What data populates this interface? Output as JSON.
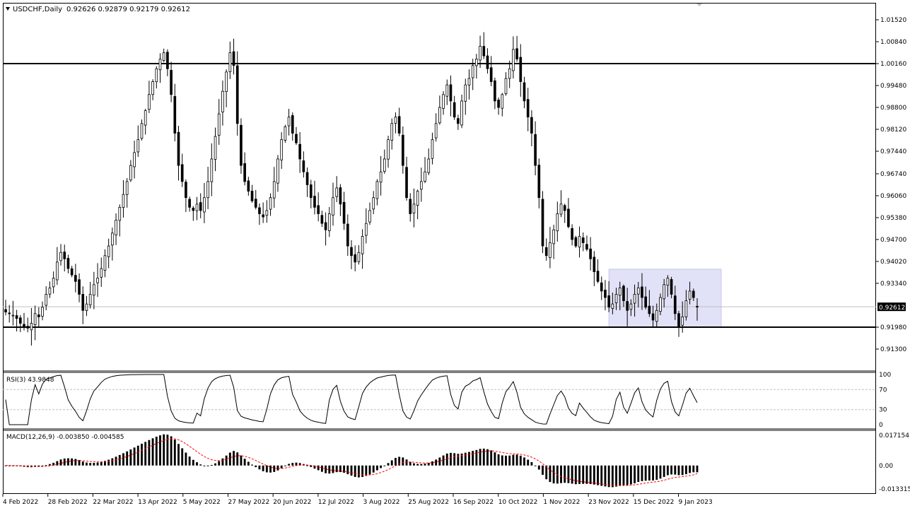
{
  "header": {
    "title": "USDCHF,Daily",
    "ohlc": "0.92626 0.92879 0.92179 0.92612"
  },
  "price_panel": {
    "current_price_label": "0.92612",
    "y_ticks": [
      "1.01520",
      "1.00840",
      "1.00160",
      "0.99480",
      "0.98800",
      "0.98120",
      "0.97440",
      "0.96740",
      "0.96060",
      "0.95380",
      "0.94700",
      "0.94020",
      "0.93340",
      "0.92612",
      "0.91980",
      "0.91300"
    ]
  },
  "rsi_panel": {
    "label": "RSI(3) 43.9848",
    "y_ticks": [
      "100",
      "70",
      "30",
      "0"
    ]
  },
  "macd_panel": {
    "label": "MACD(12,26,9) -0.003850 -0.004585",
    "y_ticks": [
      "0.017154",
      "0.00",
      "-0.013315"
    ]
  },
  "x_ticks": [
    "4 Feb 2022",
    "28 Feb 2022",
    "22 Mar 2022",
    "13 Apr 2022",
    "5 May 2022",
    "27 May 2022",
    "20 Jun 2022",
    "12 Jul 2022",
    "3 Aug 2022",
    "25 Aug 2022",
    "16 Sep 2022",
    "10 Oct 2022",
    "1 Nov 2022",
    "23 Nov 2022",
    "15 Dec 2022",
    "9 Jan 2023"
  ],
  "colors": {
    "candle": "#000000",
    "zone_fill": "#e1e1f7",
    "signal_line": "#ff0000",
    "level_line": "#000000"
  },
  "chart_data": [
    {
      "type": "candlestick",
      "title": "USDCHF,Daily",
      "x_range": [
        "4 Feb 2022",
        "16 Jan 2023"
      ],
      "ylim": [
        0.913,
        1.0152
      ],
      "horizontal_levels": [
        1.0016,
        0.9198
      ],
      "highlight_zone": {
        "y_range": [
          0.9198,
          0.9378
        ]
      },
      "last_bar_ohlc": {
        "open": 0.92626,
        "high": 0.92879,
        "low": 0.92179,
        "close": 0.92612
      },
      "closes": [
        0.9245,
        0.924,
        0.9235,
        0.9225,
        0.921,
        0.92,
        0.9195,
        0.921,
        0.924,
        0.923,
        0.926,
        0.93,
        0.932,
        0.935,
        0.94,
        0.943,
        0.941,
        0.938,
        0.936,
        0.934,
        0.93,
        0.925,
        0.927,
        0.93,
        0.933,
        0.935,
        0.938,
        0.942,
        0.945,
        0.949,
        0.953,
        0.957,
        0.961,
        0.965,
        0.97,
        0.974,
        0.978,
        0.983,
        0.987,
        0.992,
        0.996,
        1.0,
        1.003,
        1.005,
        1.0,
        0.992,
        0.98,
        0.97,
        0.965,
        0.96,
        0.957,
        0.956,
        0.958,
        0.956,
        0.96,
        0.965,
        0.972,
        0.979,
        0.986,
        0.993,
        0.999,
        1.005,
        1.001,
        0.983,
        0.97,
        0.965,
        0.962,
        0.959,
        0.957,
        0.955,
        0.954,
        0.956,
        0.96,
        0.965,
        0.972,
        0.978,
        0.982,
        0.985,
        0.98,
        0.977,
        0.972,
        0.968,
        0.964,
        0.96,
        0.957,
        0.955,
        0.952,
        0.95,
        0.955,
        0.96,
        0.963,
        0.958,
        0.952,
        0.945,
        0.942,
        0.94,
        0.943,
        0.948,
        0.952,
        0.956,
        0.96,
        0.965,
        0.968,
        0.972,
        0.978,
        0.983,
        0.985,
        0.98,
        0.97,
        0.96,
        0.955,
        0.958,
        0.962,
        0.965,
        0.968,
        0.972,
        0.978,
        0.983,
        0.988,
        0.992,
        0.995,
        0.99,
        0.985,
        0.983,
        0.99,
        0.995,
        0.997,
        1.001,
        1.003,
        1.007,
        1.004,
        1.0,
        0.996,
        0.99,
        0.988,
        0.992,
        0.997,
        1.0,
        1.006,
        1.003,
        0.996,
        0.99,
        0.985,
        0.98,
        0.97,
        0.96,
        0.945,
        0.942,
        0.946,
        0.95,
        0.955,
        0.958,
        0.956,
        0.951,
        0.947,
        0.945,
        0.948,
        0.946,
        0.944,
        0.941,
        0.937,
        0.934,
        0.931,
        0.929,
        0.926,
        0.927,
        0.93,
        0.932,
        0.928,
        0.925,
        0.927,
        0.93,
        0.932,
        0.929,
        0.926,
        0.924,
        0.922,
        0.925,
        0.929,
        0.933,
        0.935,
        0.93,
        0.924,
        0.92,
        0.923,
        0.928,
        0.931,
        0.929,
        0.9261
      ]
    },
    {
      "type": "line",
      "title": "RSI(3) 43.9848",
      "ylim": [
        0,
        100
      ],
      "reference_lines": [
        70,
        30
      ],
      "last_value": 43.9848
    },
    {
      "type": "bar",
      "title": "MACD(12,26,9) -0.003850 -0.004585",
      "ylim": [
        -0.013315,
        0.017154
      ],
      "last_values": {
        "macd": -0.00385,
        "signal": -0.004585
      },
      "series": [
        {
          "name": "MACD(12,26,9)"
        }
      ]
    }
  ]
}
